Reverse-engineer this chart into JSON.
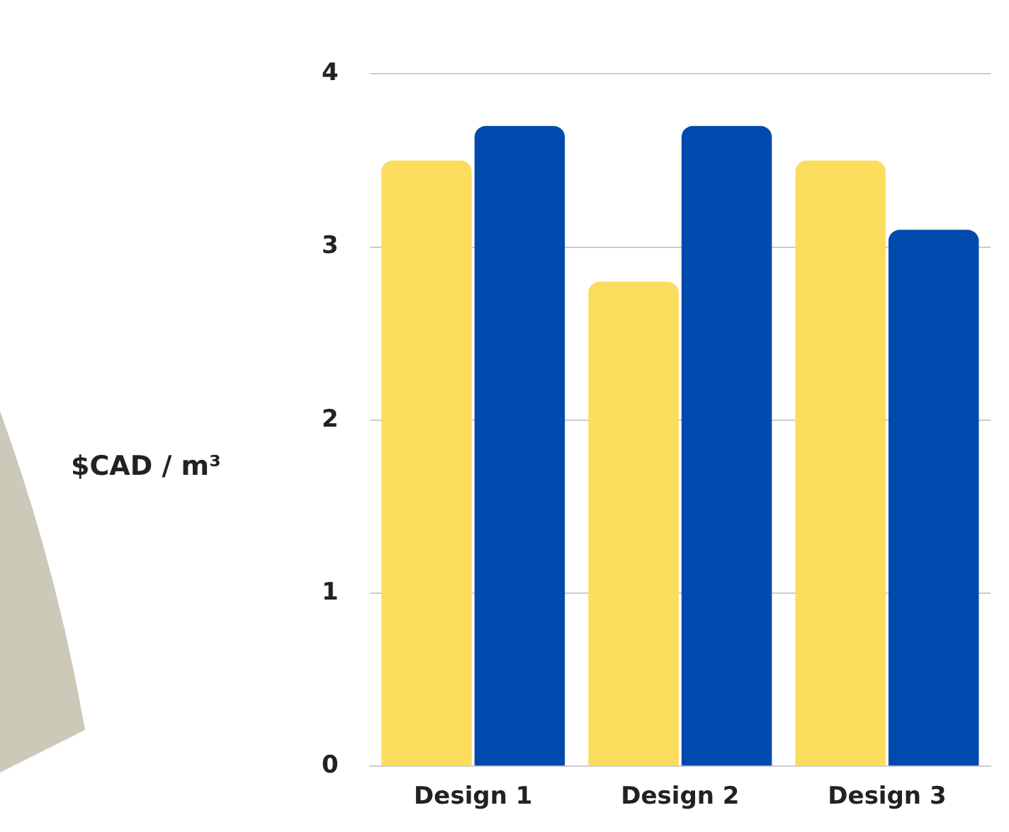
{
  "chart_data": {
    "type": "bar",
    "ylabel": "$CAD / m³",
    "categories": [
      "Design 1",
      "Design 2",
      "Design 3"
    ],
    "series": [
      {
        "color": "#fcdc5c",
        "values": [
          3.5,
          2.8,
          3.5
        ]
      },
      {
        "color": "#004aad",
        "values": [
          3.7,
          3.7,
          3.1
        ]
      }
    ],
    "ylim": [
      0,
      4
    ],
    "yticks": [
      0,
      1,
      2,
      3,
      4
    ],
    "grid": "y",
    "legend": false
  }
}
